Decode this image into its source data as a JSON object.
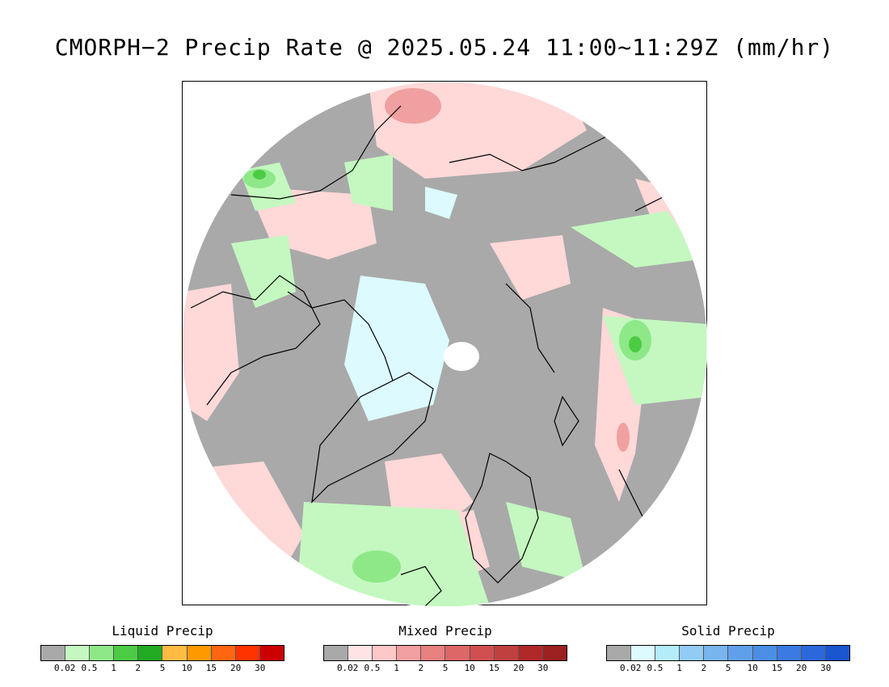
{
  "title": "CMORPH−2 Precip Rate @ 2025.05.24 11:00~11:29Z (mm/hr)",
  "map": {
    "projection": "north polar stereographic",
    "background_color": "#a9a9a9",
    "no_data_color": "#ffffff"
  },
  "legends": [
    {
      "name": "liquid",
      "title": "Liquid Precip",
      "colors": [
        "#a9a9a9",
        "#c4f8c0",
        "#8ee888",
        "#4ccc44",
        "#22aa22",
        "#ffbb44",
        "#ff9900",
        "#ff6611",
        "#ff3300",
        "#cc0000"
      ],
      "ticks": [
        "0.02",
        "0.5",
        "1",
        "2",
        "5",
        "10",
        "15",
        "20",
        "30"
      ]
    },
    {
      "name": "mixed",
      "title": "Mixed Precip",
      "colors": [
        "#a9a9a9",
        "#ffe4e4",
        "#ffc8c8",
        "#f2a0a0",
        "#e88080",
        "#dd6666",
        "#d05050",
        "#c04040",
        "#b02828",
        "#9c2020"
      ],
      "ticks": [
        "0.02",
        "0.5",
        "1",
        "2",
        "5",
        "10",
        "15",
        "20",
        "30"
      ]
    },
    {
      "name": "solid",
      "title": "Solid Precip",
      "colors": [
        "#a9a9a9",
        "#dcfaff",
        "#b4ecfa",
        "#92ccf4",
        "#78b4ee",
        "#60a0ea",
        "#4a8ee6",
        "#3a7ae2",
        "#2a68dc",
        "#1a56d0"
      ],
      "ticks": [
        "0.02",
        "0.5",
        "1",
        "2",
        "5",
        "10",
        "15",
        "20",
        "30"
      ]
    }
  ]
}
